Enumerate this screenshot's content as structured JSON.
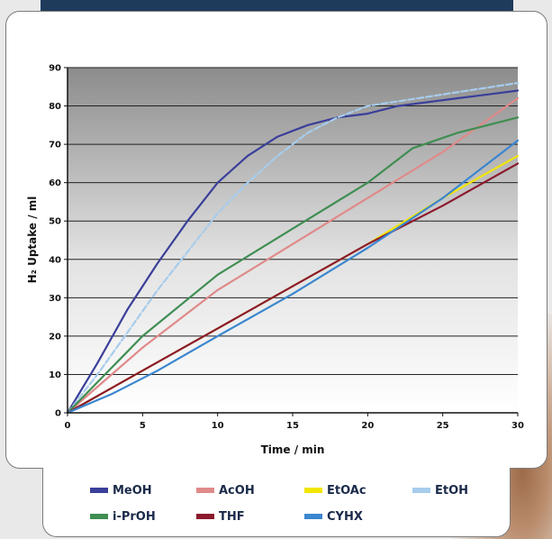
{
  "chart_data": {
    "type": "line",
    "title": "",
    "xlabel": "Time / min",
    "ylabel": "H₂ Uptake / ml",
    "xlim": [
      0,
      30
    ],
    "ylim": [
      0,
      90
    ],
    "x_ticks": [
      "0",
      "5",
      "10",
      "15",
      "20",
      "25",
      "30"
    ],
    "y_ticks": [
      "0",
      "10",
      "20",
      "30",
      "40",
      "50",
      "60",
      "70",
      "80",
      "90"
    ],
    "grid": "horizontal",
    "legend_placement": "bottom",
    "series": [
      {
        "name": "MeOH",
        "color": "#3a3f9a",
        "dashed": false,
        "points": [
          [
            0,
            0
          ],
          [
            2,
            13
          ],
          [
            4,
            27
          ],
          [
            6,
            39
          ],
          [
            8,
            50
          ],
          [
            10,
            60
          ],
          [
            12,
            67
          ],
          [
            14,
            72
          ],
          [
            16,
            75
          ],
          [
            18,
            77
          ],
          [
            20,
            78
          ],
          [
            22,
            80
          ],
          [
            24,
            81
          ],
          [
            26,
            82
          ],
          [
            28,
            83
          ],
          [
            30,
            84
          ]
        ]
      },
      {
        "name": "AcOH",
        "color": "#e08a8a",
        "dashed": false,
        "points": [
          [
            0,
            0
          ],
          [
            5,
            17
          ],
          [
            10,
            32
          ],
          [
            15,
            44
          ],
          [
            20,
            56
          ],
          [
            25,
            68
          ],
          [
            30,
            82
          ]
        ]
      },
      {
        "name": "EtOAc",
        "color": "#f2e500",
        "dashed": false,
        "points": [
          [
            0,
            0
          ],
          [
            5,
            11
          ],
          [
            10,
            22
          ],
          [
            15,
            33
          ],
          [
            20,
            44
          ],
          [
            25,
            56
          ],
          [
            30,
            67
          ]
        ]
      },
      {
        "name": "EtOH",
        "color": "#a7ccec",
        "dashed": true,
        "points": [
          [
            0,
            0
          ],
          [
            2,
            10
          ],
          [
            4,
            21
          ],
          [
            6,
            32
          ],
          [
            8,
            42
          ],
          [
            10,
            52
          ],
          [
            12,
            60
          ],
          [
            14,
            67
          ],
          [
            16,
            73
          ],
          [
            18,
            77
          ],
          [
            20,
            80
          ],
          [
            25,
            83
          ],
          [
            30,
            86
          ]
        ]
      },
      {
        "name": "i-PrOH",
        "color": "#3f8e52",
        "dashed": false,
        "points": [
          [
            0,
            0
          ],
          [
            5,
            20
          ],
          [
            10,
            36
          ],
          [
            15,
            48
          ],
          [
            20,
            60
          ],
          [
            23,
            69
          ],
          [
            26,
            73
          ],
          [
            30,
            77
          ]
        ]
      },
      {
        "name": "THF",
        "color": "#8b1a2e",
        "dashed": false,
        "points": [
          [
            0,
            0
          ],
          [
            5,
            11
          ],
          [
            10,
            22
          ],
          [
            15,
            33
          ],
          [
            20,
            44
          ],
          [
            25,
            54
          ],
          [
            30,
            65
          ]
        ]
      },
      {
        "name": "CYHX",
        "color": "#3a86cf",
        "dashed": false,
        "points": [
          [
            0,
            0
          ],
          [
            3,
            5
          ],
          [
            6,
            11
          ],
          [
            10,
            20
          ],
          [
            15,
            31
          ],
          [
            20,
            43
          ],
          [
            25,
            56
          ],
          [
            30,
            71
          ]
        ]
      }
    ]
  }
}
